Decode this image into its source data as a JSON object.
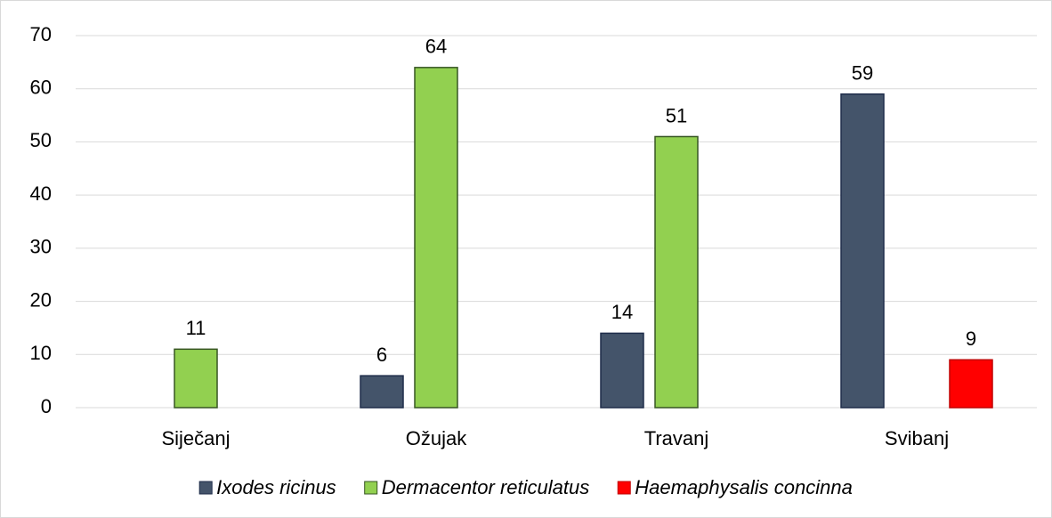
{
  "chart_data": {
    "type": "bar",
    "categories": [
      "Siječanj",
      "Ožujak",
      "Travanj",
      "Svibanj"
    ],
    "series": [
      {
        "name": "Ixodes ricinus",
        "color": "#44546a",
        "values": [
          null,
          6,
          14,
          59
        ]
      },
      {
        "name": "Dermacentor reticulatus",
        "color": "#92d050",
        "values": [
          11,
          64,
          51,
          null
        ]
      },
      {
        "name": "Haemaphysalis concinna",
        "color": "#ff0000",
        "values": [
          null,
          null,
          null,
          9
        ]
      }
    ],
    "ylim": [
      0,
      70
    ],
    "yticks": [
      0,
      10,
      20,
      30,
      40,
      50,
      60,
      70
    ],
    "grid": true,
    "legend": "bottom"
  }
}
